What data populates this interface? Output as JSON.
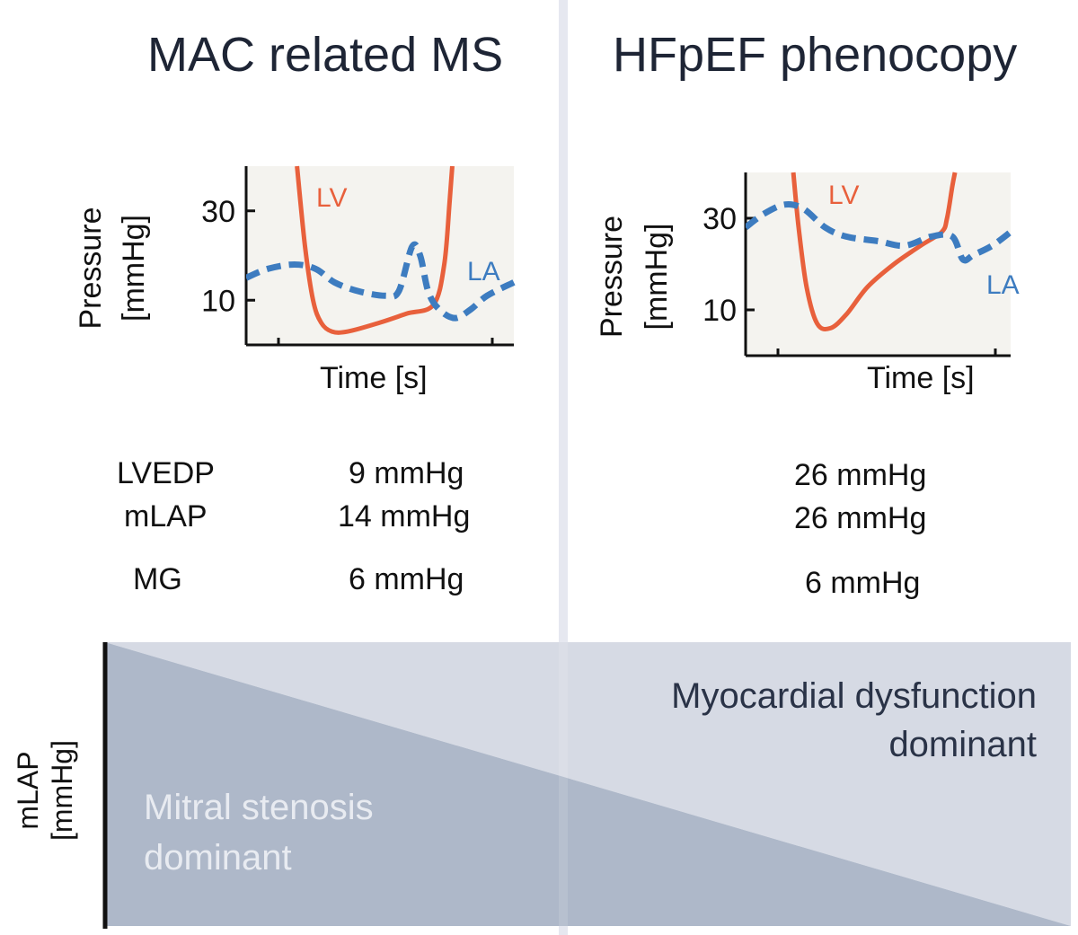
{
  "panels": [
    {
      "title": "MAC related MS",
      "chart_data": {
        "type": "line",
        "xlabel": "Time [s]",
        "ylabel": "Pressure",
        "ylabel_unit": "[mmHg]",
        "yticks": [
          10,
          30
        ],
        "ylim": [
          0,
          40
        ],
        "xlim": [
          0,
          1
        ],
        "series": [
          {
            "name": "LV",
            "style": "solid",
            "color": "#e8603c",
            "x": [
              0.19,
              0.22,
              0.25,
              0.28,
              0.32,
              0.38,
              0.5,
              0.6,
              0.7,
              0.74,
              0.76,
              0.77
            ],
            "y": [
              40,
              22,
              10,
              5,
              3,
              3,
              5,
              7,
              9,
              18,
              32,
              40
            ]
          },
          {
            "name": "LA",
            "style": "dashed",
            "color": "#3d7cc0",
            "x": [
              0,
              0.08,
              0.18,
              0.26,
              0.33,
              0.42,
              0.52,
              0.57,
              0.62,
              0.65,
              0.68,
              0.72,
              0.78,
              0.84,
              0.9,
              1.0
            ],
            "y": [
              15,
              17,
              18,
              17,
              14,
              12,
              11,
              12,
              22,
              20,
              12,
              8,
              6,
              8,
              11,
              14
            ]
          }
        ]
      },
      "values": {
        "lvedp": "9 mmHg",
        "mlap": "14 mmHg",
        "mg": "6 mmHg"
      }
    },
    {
      "title": "HFpEF phenocopy",
      "chart_data": {
        "type": "line",
        "xlabel": "Time [s]",
        "ylabel": "Pressure",
        "ylabel_unit": "[mmHg]",
        "yticks": [
          10,
          30
        ],
        "ylim": [
          0,
          40
        ],
        "xlim": [
          0,
          1
        ],
        "series": [
          {
            "name": "LV",
            "style": "solid",
            "color": "#e8603c",
            "x": [
              0.18,
              0.2,
              0.23,
              0.27,
              0.32,
              0.38,
              0.46,
              0.56,
              0.66,
              0.74,
              0.76,
              0.78,
              0.79
            ],
            "y": [
              40,
              28,
              15,
              7,
              6,
              9,
              15,
              20,
              24,
              27,
              30,
              37,
              40
            ]
          },
          {
            "name": "LA",
            "style": "dashed",
            "color": "#3d7cc0",
            "x": [
              0,
              0.07,
              0.15,
              0.22,
              0.3,
              0.38,
              0.5,
              0.6,
              0.7,
              0.78,
              0.82,
              0.86,
              0.93,
              1.0
            ],
            "y": [
              28,
              31,
              33,
              32,
              28,
              26,
              25,
              24,
              26,
              26,
              21,
              22,
              24,
              27
            ]
          }
        ]
      },
      "values": {
        "lvedp": "26 mmHg",
        "mlap": "26 mmHg",
        "mg": "6 mmHg"
      }
    }
  ],
  "row_labels": {
    "lvedp": "LVEDP",
    "mlap": "mLAP",
    "mg": "MG"
  },
  "bottom": {
    "ylabel": "mLAP",
    "ylabel_unit": "[mmHg]",
    "left_region_label": [
      "Mitral stenosis",
      "dominant"
    ],
    "right_region_label": [
      "Myocardial dysfunction",
      "dominant"
    ]
  },
  "colors": {
    "lv": "#e8603c",
    "la": "#3d7cc0",
    "dark_region": "#aeb8c9",
    "light_region": "#d6dae4",
    "title": "#1e2535"
  }
}
